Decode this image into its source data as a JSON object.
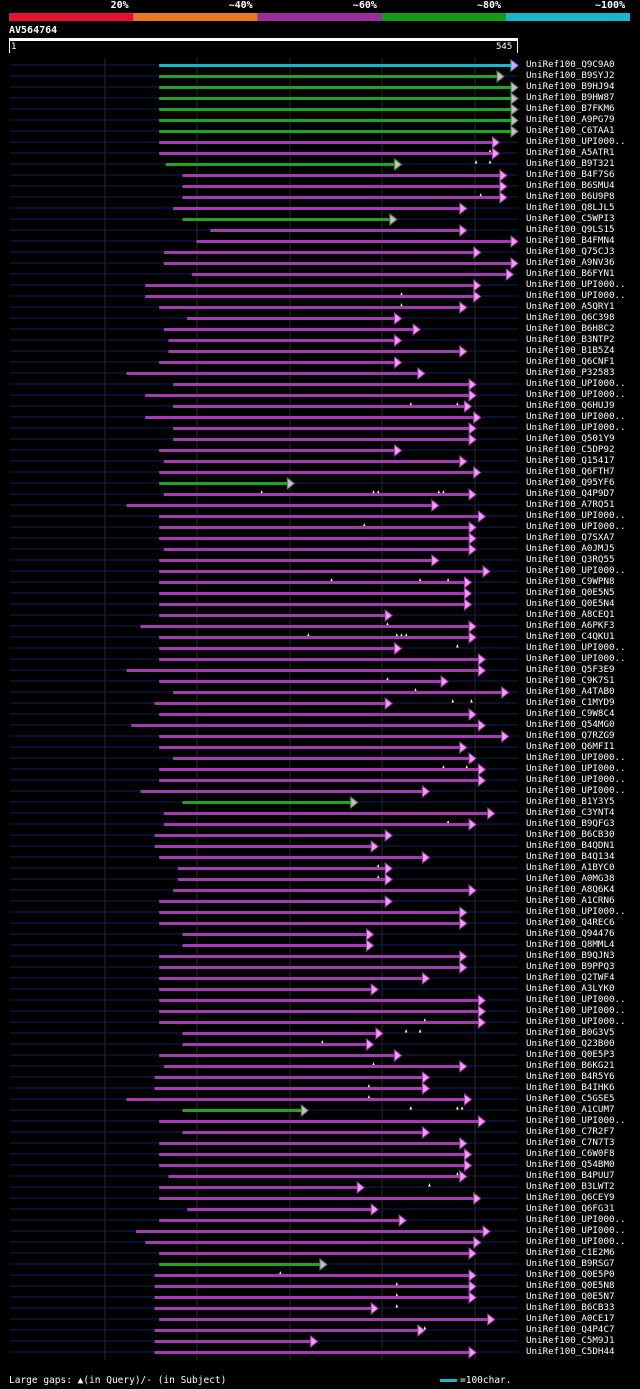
{
  "legend": {
    "bins": [
      {
        "label": "20%",
        "color": "#e8112d"
      },
      {
        "label": "~40%",
        "color": "#e87722"
      },
      {
        "label": "~60%",
        "color": "#9b2d99"
      },
      {
        "label": "~80%",
        "color": "#149b14"
      },
      {
        "label": "~100%",
        "color": "#19b8c8"
      }
    ]
  },
  "query": {
    "name": "AV564764",
    "start": "1",
    "end": "545",
    "length": 545
  },
  "colors": {
    "purple": "#a33bb3",
    "green": "#1ea61e",
    "cyan": "#19b8c8",
    "arrow_fill": "#f0a0f0",
    "track": "#0e1f5a",
    "grid": "#2a2a2a"
  },
  "hits": [
    {
      "name": "UniRef100_Q9C9A0",
      "color": "cyan",
      "start": 160,
      "end": 545,
      "gaps": []
    },
    {
      "name": "UniRef100_B9SYJ2",
      "color": "green",
      "start": 160,
      "end": 530,
      "gaps": []
    },
    {
      "name": "UniRef100_B9HJ94",
      "color": "green",
      "start": 160,
      "end": 545,
      "gaps": []
    },
    {
      "name": "UniRef100_B9HW87",
      "color": "green",
      "start": 160,
      "end": 545,
      "gaps": []
    },
    {
      "name": "UniRef100_B7FKM6",
      "color": "green",
      "start": 160,
      "end": 545,
      "gaps": []
    },
    {
      "name": "UniRef100_A9PG79",
      "color": "green",
      "start": 160,
      "end": 545,
      "gaps": []
    },
    {
      "name": "UniRef100_C6TAA1",
      "color": "green",
      "start": 160,
      "end": 545,
      "gaps": []
    },
    {
      "name": "UniRef100_UPI000..",
      "color": "purple",
      "start": 160,
      "end": 525,
      "gaps": [
        515
      ]
    },
    {
      "name": "UniRef100_A5ATR1",
      "color": "purple",
      "start": 160,
      "end": 525,
      "gaps": [
        500,
        515
      ]
    },
    {
      "name": "UniRef100_B9T321",
      "color": "green",
      "start": 167,
      "end": 420,
      "gaps": []
    },
    {
      "name": "UniRef100_B4F7S6",
      "color": "purple",
      "start": 185,
      "end": 533,
      "gaps": []
    },
    {
      "name": "UniRef100_B6SMU4",
      "color": "purple",
      "start": 185,
      "end": 533,
      "gaps": [
        505
      ]
    },
    {
      "name": "UniRef100_B6U9P8",
      "color": "purple",
      "start": 185,
      "end": 533,
      "gaps": []
    },
    {
      "name": "UniRef100_Q8LJL5",
      "color": "purple",
      "start": 175,
      "end": 490,
      "gaps": []
    },
    {
      "name": "UniRef100_C5WPI3",
      "color": "green",
      "start": 185,
      "end": 415,
      "gaps": []
    },
    {
      "name": "UniRef100_Q9LS15",
      "color": "purple",
      "start": 215,
      "end": 490,
      "gaps": []
    },
    {
      "name": "UniRef100_B4FMN4",
      "color": "purple",
      "start": 200,
      "end": 545,
      "gaps": []
    },
    {
      "name": "UniRef100_Q75CJ3",
      "color": "purple",
      "start": 165,
      "end": 505,
      "gaps": []
    },
    {
      "name": "UniRef100_A9NV36",
      "color": "purple",
      "start": 165,
      "end": 545,
      "gaps": []
    },
    {
      "name": "UniRef100_B6FYN1",
      "color": "purple",
      "start": 195,
      "end": 540,
      "gaps": []
    },
    {
      "name": "UniRef100_UPI000..",
      "color": "purple",
      "start": 145,
      "end": 505,
      "gaps": [
        420
      ]
    },
    {
      "name": "UniRef100_UPI000..",
      "color": "purple",
      "start": 145,
      "end": 505,
      "gaps": [
        420
      ]
    },
    {
      "name": "UniRef100_A5QRY1",
      "color": "purple",
      "start": 160,
      "end": 490,
      "gaps": []
    },
    {
      "name": "UniRef100_Q6C398",
      "color": "purple",
      "start": 190,
      "end": 420,
      "gaps": []
    },
    {
      "name": "UniRef100_B6H8C2",
      "color": "purple",
      "start": 165,
      "end": 440,
      "gaps": []
    },
    {
      "name": "UniRef100_B3NTP2",
      "color": "purple",
      "start": 170,
      "end": 420,
      "gaps": []
    },
    {
      "name": "UniRef100_B1B5Z4",
      "color": "purple",
      "start": 170,
      "end": 490,
      "gaps": []
    },
    {
      "name": "UniRef100_Q6CNF1",
      "color": "purple",
      "start": 160,
      "end": 420,
      "gaps": []
    },
    {
      "name": "UniRef100_P32583",
      "color": "purple",
      "start": 125,
      "end": 445,
      "gaps": []
    },
    {
      "name": "UniRef100_UPI000..",
      "color": "purple",
      "start": 175,
      "end": 500,
      "gaps": []
    },
    {
      "name": "UniRef100_UPI000..",
      "color": "purple",
      "start": 145,
      "end": 500,
      "gaps": [
        430,
        480
      ]
    },
    {
      "name": "UniRef100_Q6HUJ9",
      "color": "purple",
      "start": 175,
      "end": 495,
      "gaps": []
    },
    {
      "name": "UniRef100_UPI000..",
      "color": "purple",
      "start": 145,
      "end": 505,
      "gaps": []
    },
    {
      "name": "UniRef100_UPI000..",
      "color": "purple",
      "start": 175,
      "end": 500,
      "gaps": []
    },
    {
      "name": "UniRef100_Q501Y9",
      "color": "purple",
      "start": 175,
      "end": 500,
      "gaps": []
    },
    {
      "name": "UniRef100_C5DP92",
      "color": "purple",
      "start": 160,
      "end": 420,
      "gaps": []
    },
    {
      "name": "UniRef100_Q15417",
      "color": "purple",
      "start": 165,
      "end": 490,
      "gaps": []
    },
    {
      "name": "UniRef100_Q6FTH7",
      "color": "purple",
      "start": 160,
      "end": 505,
      "gaps": []
    },
    {
      "name": "UniRef100_Q95YF6",
      "color": "green",
      "start": 160,
      "end": 305,
      "gaps": [
        270,
        390,
        395,
        460,
        465
      ]
    },
    {
      "name": "UniRef100_Q4P9D7",
      "color": "purple",
      "start": 165,
      "end": 500,
      "gaps": []
    },
    {
      "name": "UniRef100_A7RQ51",
      "color": "purple",
      "start": 125,
      "end": 460,
      "gaps": []
    },
    {
      "name": "UniRef100_UPI000..",
      "color": "purple",
      "start": 160,
      "end": 510,
      "gaps": [
        380
      ]
    },
    {
      "name": "UniRef100_UPI000..",
      "color": "purple",
      "start": 160,
      "end": 500,
      "gaps": []
    },
    {
      "name": "UniRef100_Q7SXA7",
      "color": "purple",
      "start": 160,
      "end": 500,
      "gaps": []
    },
    {
      "name": "UniRef100_A0JMJ5",
      "color": "purple",
      "start": 165,
      "end": 500,
      "gaps": []
    },
    {
      "name": "UniRef100_Q3RQ55",
      "color": "purple",
      "start": 160,
      "end": 460,
      "gaps": []
    },
    {
      "name": "UniRef100_UPI000..",
      "color": "purple",
      "start": 160,
      "end": 515,
      "gaps": [
        345,
        440,
        470
      ]
    },
    {
      "name": "UniRef100_C9WPN8",
      "color": "purple",
      "start": 160,
      "end": 495,
      "gaps": []
    },
    {
      "name": "UniRef100_Q0E5N5",
      "color": "purple",
      "start": 160,
      "end": 495,
      "gaps": []
    },
    {
      "name": "UniRef100_Q0E5N4",
      "color": "purple",
      "start": 160,
      "end": 495,
      "gaps": []
    },
    {
      "name": "UniRef100_A8CEQ1",
      "color": "purple",
      "start": 160,
      "end": 410,
      "gaps": [
        405
      ]
    },
    {
      "name": "UniRef100_A6PKF3",
      "color": "purple",
      "start": 140,
      "end": 500,
      "gaps": [
        320,
        415,
        420,
        425
      ]
    },
    {
      "name": "UniRef100_C4QKU1",
      "color": "purple",
      "start": 160,
      "end": 500,
      "gaps": [
        480
      ]
    },
    {
      "name": "UniRef100_UPI000..",
      "color": "purple",
      "start": 160,
      "end": 420,
      "gaps": []
    },
    {
      "name": "UniRef100_UPI000..",
      "color": "purple",
      "start": 160,
      "end": 510,
      "gaps": []
    },
    {
      "name": "UniRef100_Q5F3E9",
      "color": "purple",
      "start": 125,
      "end": 510,
      "gaps": [
        405
      ]
    },
    {
      "name": "UniRef100_C9K7S1",
      "color": "purple",
      "start": 160,
      "end": 470,
      "gaps": [
        435
      ]
    },
    {
      "name": "UniRef100_A4TAB0",
      "color": "purple",
      "start": 175,
      "end": 535,
      "gaps": [
        475,
        495
      ]
    },
    {
      "name": "UniRef100_C1MYD9",
      "color": "purple",
      "start": 155,
      "end": 410,
      "gaps": []
    },
    {
      "name": "UniRef100_C9W8C4",
      "color": "purple",
      "start": 160,
      "end": 500,
      "gaps": []
    },
    {
      "name": "UniRef100_Q54MG0",
      "color": "purple",
      "start": 130,
      "end": 510,
      "gaps": []
    },
    {
      "name": "UniRef100_Q7RZG9",
      "color": "purple",
      "start": 160,
      "end": 535,
      "gaps": []
    },
    {
      "name": "UniRef100_Q6MFI1",
      "color": "purple",
      "start": 160,
      "end": 490,
      "gaps": []
    },
    {
      "name": "UniRef100_UPI000..",
      "color": "purple",
      "start": 175,
      "end": 500,
      "gaps": [
        465,
        490
      ]
    },
    {
      "name": "UniRef100_UPI000..",
      "color": "purple",
      "start": 160,
      "end": 510,
      "gaps": []
    },
    {
      "name": "UniRef100_UPI000..",
      "color": "purple",
      "start": 160,
      "end": 510,
      "gaps": []
    },
    {
      "name": "UniRef100_UPI000..",
      "color": "purple",
      "start": 140,
      "end": 450,
      "gaps": []
    },
    {
      "name": "UniRef100_B1Y3Y5",
      "color": "green",
      "start": 185,
      "end": 373,
      "gaps": []
    },
    {
      "name": "UniRef100_C3YNT4",
      "color": "purple",
      "start": 165,
      "end": 520,
      "gaps": [
        470
      ]
    },
    {
      "name": "UniRef100_B9QFG3",
      "color": "purple",
      "start": 165,
      "end": 500,
      "gaps": []
    },
    {
      "name": "UniRef100_B6CB30",
      "color": "purple",
      "start": 155,
      "end": 410,
      "gaps": []
    },
    {
      "name": "UniRef100_B4QDN1",
      "color": "purple",
      "start": 155,
      "end": 395,
      "gaps": []
    },
    {
      "name": "UniRef100_B4Q134",
      "color": "purple",
      "start": 160,
      "end": 450,
      "gaps": [
        395
      ]
    },
    {
      "name": "UniRef100_A1BYC0",
      "color": "purple",
      "start": 180,
      "end": 410,
      "gaps": [
        395
      ]
    },
    {
      "name": "UniRef100_A0MG38",
      "color": "purple",
      "start": 180,
      "end": 410,
      "gaps": []
    },
    {
      "name": "UniRef100_A8Q6K4",
      "color": "purple",
      "start": 175,
      "end": 500,
      "gaps": []
    },
    {
      "name": "UniRef100_A1CRN6",
      "color": "purple",
      "start": 160,
      "end": 410,
      "gaps": []
    },
    {
      "name": "UniRef100_UPI000..",
      "color": "purple",
      "start": 160,
      "end": 490,
      "gaps": []
    },
    {
      "name": "UniRef100_Q4REC6",
      "color": "purple",
      "start": 160,
      "end": 490,
      "gaps": []
    },
    {
      "name": "UniRef100_Q94476",
      "color": "purple",
      "start": 185,
      "end": 390,
      "gaps": []
    },
    {
      "name": "UniRef100_Q8MML4",
      "color": "purple",
      "start": 185,
      "end": 390,
      "gaps": []
    },
    {
      "name": "UniRef100_B9QJN3",
      "color": "purple",
      "start": 160,
      "end": 490,
      "gaps": []
    },
    {
      "name": "UniRef100_B9PPQ3",
      "color": "purple",
      "start": 160,
      "end": 490,
      "gaps": []
    },
    {
      "name": "UniRef100_Q2TWF4",
      "color": "purple",
      "start": 160,
      "end": 450,
      "gaps": []
    },
    {
      "name": "UniRef100_A3LYK0",
      "color": "purple",
      "start": 160,
      "end": 395,
      "gaps": []
    },
    {
      "name": "UniRef100_UPI000..",
      "color": "purple",
      "start": 160,
      "end": 510,
      "gaps": []
    },
    {
      "name": "UniRef100_UPI000..",
      "color": "purple",
      "start": 160,
      "end": 510,
      "gaps": [
        445
      ]
    },
    {
      "name": "UniRef100_UPI000..",
      "color": "purple",
      "start": 160,
      "end": 510,
      "gaps": [
        425,
        440
      ]
    },
    {
      "name": "UniRef100_B0G3V5",
      "color": "purple",
      "start": 185,
      "end": 400,
      "gaps": [
        335
      ]
    },
    {
      "name": "UniRef100_Q23B00",
      "color": "purple",
      "start": 185,
      "end": 390,
      "gaps": []
    },
    {
      "name": "UniRef100_Q0E5P3",
      "color": "purple",
      "start": 160,
      "end": 420,
      "gaps": [
        390
      ]
    },
    {
      "name": "UniRef100_B6KG21",
      "color": "purple",
      "start": 165,
      "end": 490,
      "gaps": []
    },
    {
      "name": "UniRef100_B4R5Y6",
      "color": "purple",
      "start": 155,
      "end": 450,
      "gaps": [
        385
      ]
    },
    {
      "name": "UniRef100_B4IHK6",
      "color": "purple",
      "start": 155,
      "end": 450,
      "gaps": [
        385
      ]
    },
    {
      "name": "UniRef100_C5GSE5",
      "color": "purple",
      "start": 125,
      "end": 495,
      "gaps": [
        430,
        480,
        485
      ]
    },
    {
      "name": "UniRef100_A1CUM7",
      "color": "green",
      "start": 185,
      "end": 320,
      "gaps": []
    },
    {
      "name": "UniRef100_UPI000..",
      "color": "purple",
      "start": 160,
      "end": 510,
      "gaps": []
    },
    {
      "name": "UniRef100_C7R2F7",
      "color": "purple",
      "start": 185,
      "end": 450,
      "gaps": []
    },
    {
      "name": "UniRef100_C7N7T3",
      "color": "purple",
      "start": 160,
      "end": 490,
      "gaps": []
    },
    {
      "name": "UniRef100_C6W0F8",
      "color": "purple",
      "start": 160,
      "end": 495,
      "gaps": []
    },
    {
      "name": "UniRef100_Q54BM0",
      "color": "purple",
      "start": 160,
      "end": 495,
      "gaps": [
        480
      ]
    },
    {
      "name": "UniRef100_B4PUU7",
      "color": "purple",
      "start": 170,
      "end": 490,
      "gaps": [
        450
      ]
    },
    {
      "name": "UniRef100_B3LWT2",
      "color": "purple",
      "start": 160,
      "end": 380,
      "gaps": []
    },
    {
      "name": "UniRef100_Q6CEY9",
      "color": "purple",
      "start": 160,
      "end": 505,
      "gaps": []
    },
    {
      "name": "UniRef100_Q6FG31",
      "color": "purple",
      "start": 190,
      "end": 395,
      "gaps": []
    },
    {
      "name": "UniRef100_UPI000..",
      "color": "purple",
      "start": 160,
      "end": 425,
      "gaps": []
    },
    {
      "name": "UniRef100_UPI000..",
      "color": "purple",
      "start": 135,
      "end": 515,
      "gaps": []
    },
    {
      "name": "UniRef100_UPI000..",
      "color": "purple",
      "start": 145,
      "end": 505,
      "gaps": []
    },
    {
      "name": "UniRef100_C1E2M6",
      "color": "purple",
      "start": 160,
      "end": 500,
      "gaps": []
    },
    {
      "name": "UniRef100_B9RSG7",
      "color": "green",
      "start": 160,
      "end": 340,
      "gaps": [
        290
      ]
    },
    {
      "name": "UniRef100_Q0E5P0",
      "color": "purple",
      "start": 155,
      "end": 500,
      "gaps": [
        415
      ]
    },
    {
      "name": "UniRef100_Q0E5N8",
      "color": "purple",
      "start": 155,
      "end": 500,
      "gaps": [
        415
      ]
    },
    {
      "name": "UniRef100_Q0E5N7",
      "color": "purple",
      "start": 155,
      "end": 500,
      "gaps": [
        415
      ]
    },
    {
      "name": "UniRef100_B6CB33",
      "color": "purple",
      "start": 155,
      "end": 395,
      "gaps": []
    },
    {
      "name": "UniRef100_A0CE17",
      "color": "purple",
      "start": 160,
      "end": 520,
      "gaps": [
        445
      ]
    },
    {
      "name": "UniRef100_Q4P4C7",
      "color": "purple",
      "start": 155,
      "end": 445,
      "gaps": []
    },
    {
      "name": "UniRef100_C5M9J1",
      "color": "purple",
      "start": 155,
      "end": 330,
      "gaps": []
    },
    {
      "name": "UniRef100_C5DH44",
      "color": "purple",
      "start": 155,
      "end": 500,
      "gaps": []
    }
  ],
  "footer": {
    "gap_text": "Large gaps: ▲(in Query)/- (in Subject)",
    "scale_text": "=100char."
  }
}
